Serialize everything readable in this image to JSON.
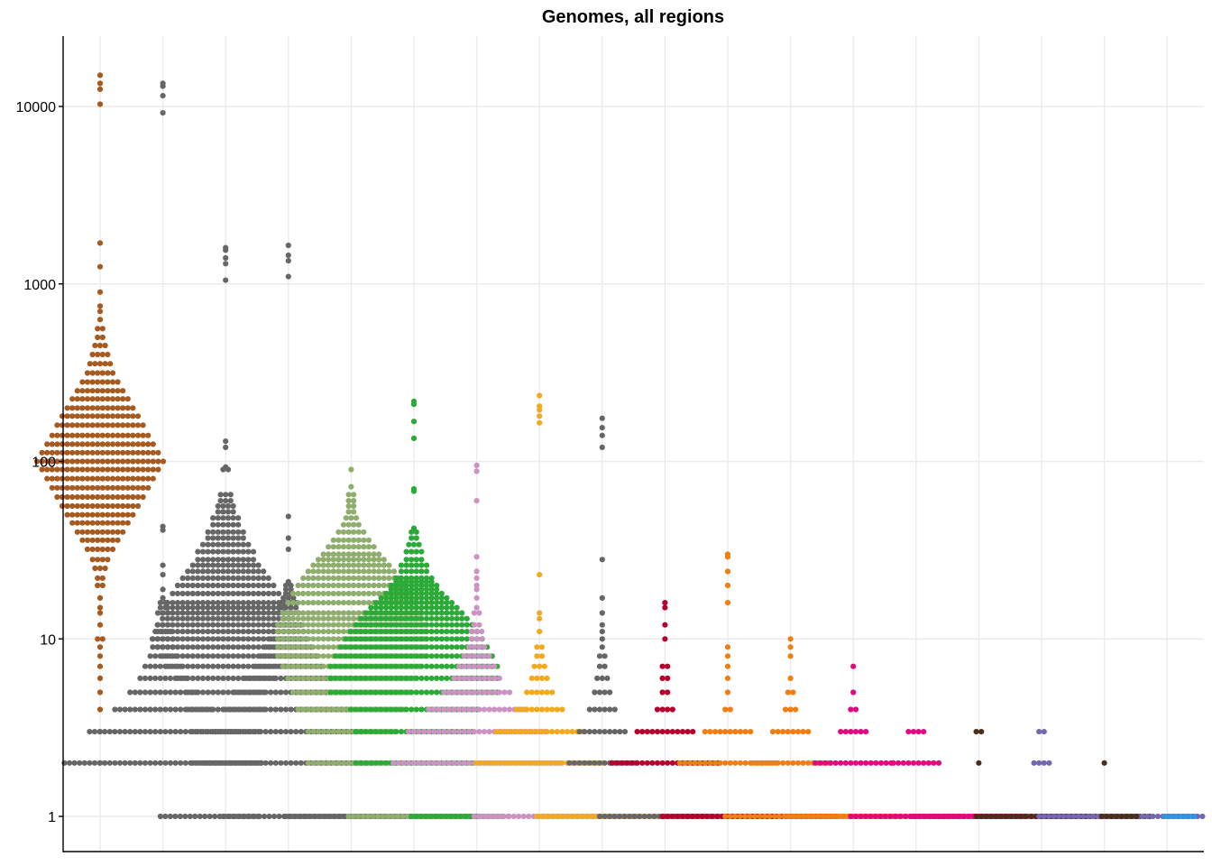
{
  "chart_data": {
    "type": "scatter",
    "subtype": "beeswarm",
    "title": "Genomes, all regions",
    "xlabel": "",
    "ylabel": "",
    "y_scale": "log10",
    "ylim": [
      0.75,
      25000
    ],
    "y_ticks": [
      1,
      10,
      100,
      1000,
      10000
    ],
    "y_tick_labels": [
      "1",
      "10",
      "100",
      "1000",
      "10000"
    ],
    "x_tick_labels": [],
    "series": [
      {
        "name": "group-1",
        "color": "#A65A20",
        "values": {
          "1": 0,
          "2": 1,
          "3": 1,
          "4": 1,
          "5": 1,
          "6": 1,
          "7": 1,
          "8": 1,
          "9": 1,
          "10": 2,
          "12": 1,
          "14": 1,
          "15": 1,
          "17": 1,
          "20": 2,
          "22": 2,
          "25": 3,
          "28": 4,
          "32": 6,
          "36": 8,
          "40": 10,
          "45": 12,
          "50": 14,
          "56": 16,
          "63": 18,
          "71": 20,
          "80": 22,
          "90": 24,
          "100": 26,
          "112": 24,
          "125": 22,
          "140": 20,
          "160": 18,
          "180": 16,
          "200": 14,
          "225": 12,
          "250": 10,
          "280": 8,
          "315": 6,
          "355": 5,
          "400": 4,
          "450": 3,
          "500": 2,
          "560": 2,
          "630": 1,
          "700": 1,
          "750": 1,
          "900": 1,
          "1250": 1,
          "1700": 1,
          "10300": 1,
          "12500": 1,
          "13500": 1,
          "15000": 1
        }
      },
      {
        "name": "group-2",
        "color": "#666666",
        "values": {
          "1": 50,
          "2": 40,
          "3": 30,
          "4": 20,
          "5": 14,
          "6": 10,
          "7": 8,
          "8": 6,
          "9": 5,
          "10": 5,
          "11": 4,
          "12": 3,
          "14": 3,
          "15": 2,
          "16": 2,
          "17": 1,
          "19": 1,
          "23": 1,
          "26": 1,
          "41": 1,
          "43": 1,
          "9200": 1,
          "11500": 1,
          "13000": 1,
          "13500": 1
        }
      },
      {
        "name": "group-3",
        "color": "#666666",
        "values": {
          "1": 8,
          "2": 14,
          "3": 14,
          "4": 16,
          "5": 16,
          "6": 20,
          "7": 24,
          "8": 26,
          "9": 28,
          "10": 30,
          "11": 28,
          "12": 28,
          "13": 26,
          "14": 26,
          "15": 24,
          "16": 24,
          "18": 22,
          "20": 20,
          "22": 18,
          "24": 16,
          "26": 14,
          "28": 12,
          "31": 12,
          "34": 10,
          "37": 8,
          "40": 8,
          "44": 6,
          "48": 6,
          "52": 4,
          "56": 4,
          "60": 3,
          "65": 3,
          "90": 2,
          "93": 1,
          "120": 1,
          "130": 1,
          "1050": 1,
          "1300": 1,
          "1400": 1,
          "1550": 1,
          "1600": 1
        }
      },
      {
        "name": "group-4",
        "color": "#666666",
        "values": {
          "1": 46,
          "2": 34,
          "3": 30,
          "4": 26,
          "5": 22,
          "6": 18,
          "7": 14,
          "8": 12,
          "9": 10,
          "10": 8,
          "11": 7,
          "12": 6,
          "14": 5,
          "15": 4,
          "16": 4,
          "17": 3,
          "18": 2,
          "19": 2,
          "20": 2,
          "21": 1,
          "32": 1,
          "37": 1,
          "49": 1,
          "1100": 1,
          "1350": 1,
          "1450": 1,
          "1650": 1
        }
      },
      {
        "name": "group-5",
        "color": "#8FAE6E",
        "values": {
          "1": 32,
          "2": 18,
          "3": 18,
          "4": 22,
          "5": 24,
          "6": 26,
          "7": 28,
          "8": 30,
          "9": 30,
          "10": 30,
          "11": 30,
          "12": 30,
          "13": 28,
          "14": 28,
          "16": 26,
          "18": 24,
          "20": 22,
          "22": 20,
          "24": 18,
          "26": 16,
          "28": 14,
          "30": 12,
          "33": 10,
          "36": 8,
          "40": 6,
          "44": 4,
          "48": 3,
          "52": 2,
          "56": 2,
          "60": 2,
          "65": 2,
          "72": 1,
          "90": 1
        }
      },
      {
        "name": "group-6",
        "color": "#2BAA37",
        "values": {
          "1": 14,
          "2": 24,
          "3": 24,
          "4": 26,
          "5": 34,
          "6": 34,
          "7": 34,
          "8": 32,
          "9": 30,
          "10": 28,
          "11": 26,
          "12": 24,
          "13": 22,
          "14": 20,
          "15": 18,
          "16": 16,
          "17": 14,
          "18": 12,
          "19": 10,
          "20": 10,
          "21": 8,
          "22": 8,
          "24": 6,
          "26": 6,
          "28": 4,
          "31": 4,
          "34": 3,
          "37": 2,
          "40": 2,
          "42": 1,
          "68": 1,
          "70": 1,
          "135": 1,
          "168": 1,
          "210": 1,
          "218": 1
        }
      },
      {
        "name": "group-7",
        "color": "#CC92C2",
        "values": {
          "1": 34,
          "2": 34,
          "3": 28,
          "4": 20,
          "5": 14,
          "6": 10,
          "7": 8,
          "8": 6,
          "9": 4,
          "10": 3,
          "11": 3,
          "12": 2,
          "14": 2,
          "15": 1,
          "17": 1,
          "19": 1,
          "20": 1,
          "22": 1,
          "24": 1,
          "29": 1,
          "60": 1,
          "88": 1,
          "95": 1
        }
      },
      {
        "name": "group-8",
        "color": "#F3A91F",
        "values": {
          "1": 36,
          "2": 26,
          "3": 18,
          "4": 10,
          "5": 6,
          "6": 4,
          "7": 3,
          "8": 2,
          "9": 2,
          "11": 1,
          "13": 1,
          "14": 1,
          "23": 1,
          "165": 1,
          "180": 1,
          "195": 1,
          "205": 1,
          "235": 1
        }
      },
      {
        "name": "group-9",
        "color": "#666666",
        "values": {
          "1": 36,
          "2": 14,
          "3": 10,
          "4": 6,
          "5": 4,
          "6": 3,
          "7": 2,
          "8": 2,
          "9": 1,
          "10": 1,
          "11": 1,
          "12": 1,
          "14": 1,
          "17": 1,
          "28": 1,
          "120": 1,
          "140": 1,
          "155": 1,
          "175": 1
        }
      },
      {
        "name": "group-10",
        "color": "#B5002D",
        "values": {
          "1": 36,
          "2": 22,
          "3": 12,
          "4": 4,
          "5": 2,
          "6": 2,
          "7": 2,
          "10": 1,
          "12": 1,
          "15": 1,
          "16": 1
        }
      },
      {
        "name": "group-11",
        "color": "#F07E14",
        "values": {
          "1": 36,
          "2": 20,
          "3": 10,
          "4": 2,
          "5": 1,
          "6": 1,
          "7": 1,
          "8": 1,
          "9": 1,
          "16": 1,
          "20": 1,
          "24": 1,
          "29": 1,
          "30": 1
        }
      },
      {
        "name": "group-12",
        "color": "#F07E14",
        "values": {
          "1": 36,
          "2": 16,
          "3": 8,
          "4": 3,
          "5": 2,
          "6": 1,
          "8": 1,
          "9": 1,
          "10": 1
        }
      },
      {
        "name": "group-13",
        "color": "#E0097D",
        "values": {
          "1": 36,
          "2": 16,
          "3": 6,
          "4": 2,
          "5": 1,
          "7": 1
        }
      },
      {
        "name": "group-14",
        "color": "#E0097D",
        "values": {
          "1": 36,
          "2": 10,
          "3": 4
        }
      },
      {
        "name": "group-15",
        "color": "#4A2E18",
        "values": {
          "1": 36,
          "2": 1,
          "3": 2
        }
      },
      {
        "name": "group-16",
        "color": "#7566B0",
        "values": {
          "1": 34,
          "2": 4,
          "3": 2
        }
      },
      {
        "name": "group-17",
        "color": "#4A2E18",
        "values": {
          "1": 8,
          "2": 1
        }
      },
      {
        "name": "group-18",
        "color": "#2D96DE",
        "values": {
          "1": 7
        }
      }
    ]
  }
}
